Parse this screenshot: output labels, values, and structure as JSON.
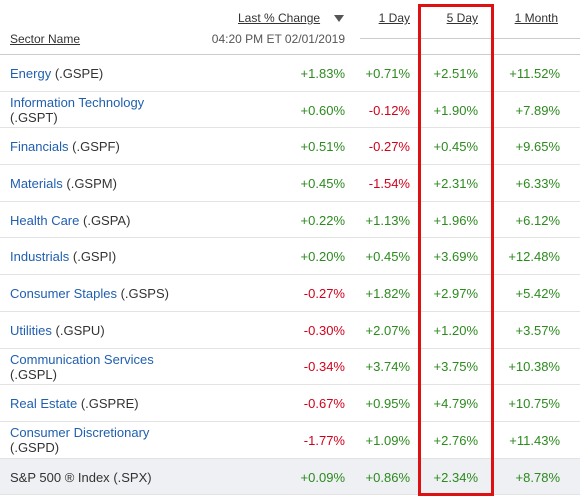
{
  "header": {
    "sector_name": "Sector Name",
    "last_change": "Last % Change",
    "timestamp": "04:20 PM ET 02/01/2019",
    "one_day": "1 Day",
    "five_day": "5 Day",
    "one_month": "1 Month"
  },
  "table": {
    "rows": [
      {
        "name": "Energy",
        "symbol": "(.GSPE)",
        "values": [
          "+1.83%",
          "+0.71%",
          "+2.51%",
          "+11.52%"
        ]
      },
      {
        "name": "Information Technology",
        "symbol": "(.GSPT)",
        "values": [
          "+0.60%",
          "-0.12%",
          "+1.90%",
          "+7.89%"
        ]
      },
      {
        "name": "Financials",
        "symbol": "(.GSPF)",
        "values": [
          "+0.51%",
          "-0.27%",
          "+0.45%",
          "+9.65%"
        ]
      },
      {
        "name": "Materials",
        "symbol": "(.GSPM)",
        "values": [
          "+0.45%",
          "-1.54%",
          "+2.31%",
          "+6.33%"
        ]
      },
      {
        "name": "Health Care",
        "symbol": "(.GSPA)",
        "values": [
          "+0.22%",
          "+1.13%",
          "+1.96%",
          "+6.12%"
        ]
      },
      {
        "name": "Industrials",
        "symbol": "(.GSPI)",
        "values": [
          "+0.20%",
          "+0.45%",
          "+3.69%",
          "+12.48%"
        ]
      },
      {
        "name": "Consumer Staples",
        "symbol": "(.GSPS)",
        "values": [
          "-0.27%",
          "+1.82%",
          "+2.97%",
          "+5.42%"
        ]
      },
      {
        "name": "Utilities",
        "symbol": "(.GSPU)",
        "values": [
          "-0.30%",
          "+2.07%",
          "+1.20%",
          "+3.57%"
        ]
      },
      {
        "name": "Communication Services",
        "symbol": "(.GSPL)",
        "values": [
          "-0.34%",
          "+3.74%",
          "+3.75%",
          "+10.38%"
        ]
      },
      {
        "name": "Real Estate",
        "symbol": "(.GSPRE)",
        "values": [
          "-0.67%",
          "+0.95%",
          "+4.79%",
          "+10.75%"
        ]
      },
      {
        "name": "Consumer Discretionary",
        "symbol": "(.GSPD)",
        "values": [
          "-1.77%",
          "+1.09%",
          "+2.76%",
          "+11.43%"
        ]
      },
      {
        "name": "S&P 500 ® Index",
        "symbol": "(.SPX)",
        "values": [
          "+0.09%",
          "+0.86%",
          "+2.34%",
          "+8.78%"
        ]
      }
    ]
  }
}
